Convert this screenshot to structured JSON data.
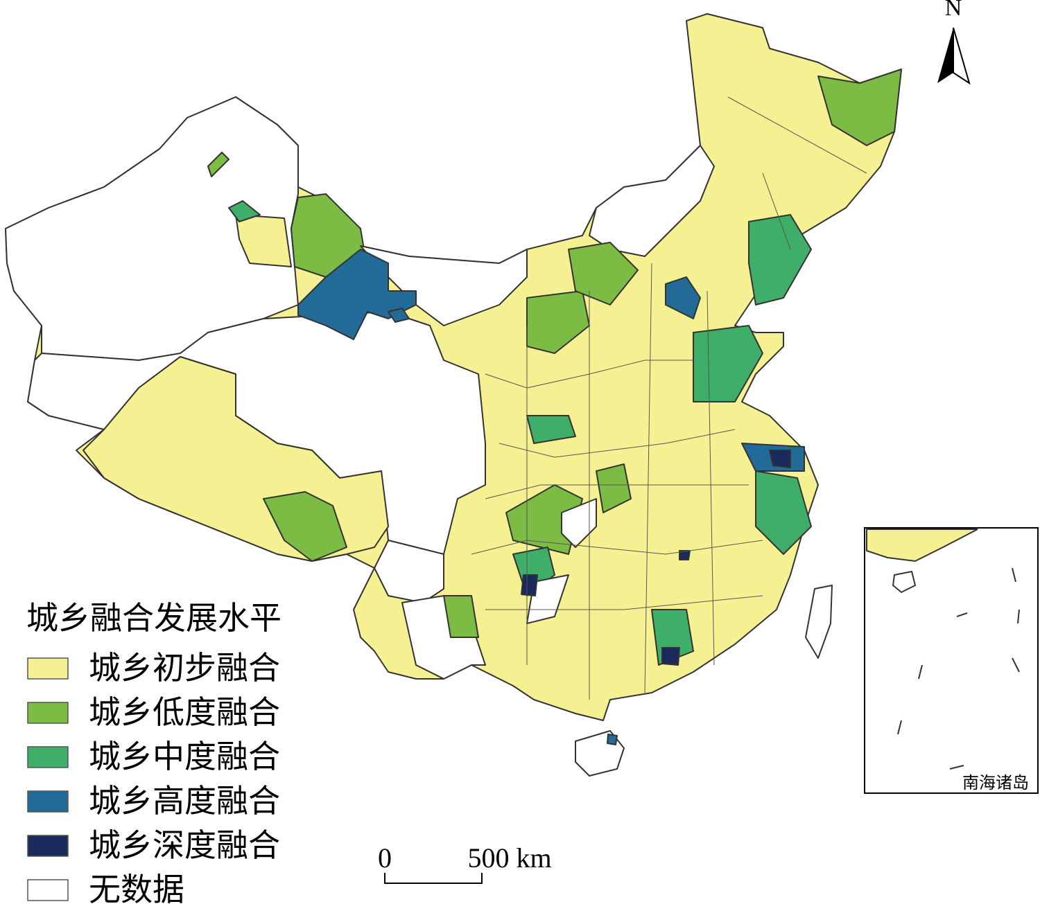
{
  "legend": {
    "title": "城乡融合发展水平",
    "items": [
      {
        "label": "城乡初步融合",
        "color": "#f5f192"
      },
      {
        "label": "城乡低度融合",
        "color": "#7dbc44"
      },
      {
        "label": "城乡中度融合",
        "color": "#3eae69"
      },
      {
        "label": "城乡高度融合",
        "color": "#226a98"
      },
      {
        "label": "城乡深度融合",
        "color": "#1b2a5c"
      },
      {
        "label": "无数据",
        "color": "#ffffff"
      }
    ]
  },
  "north_arrow": {
    "label": "N"
  },
  "scale_bar": {
    "labels": [
      "0",
      "500 km"
    ]
  },
  "inset": {
    "label": "南海诸岛"
  }
}
